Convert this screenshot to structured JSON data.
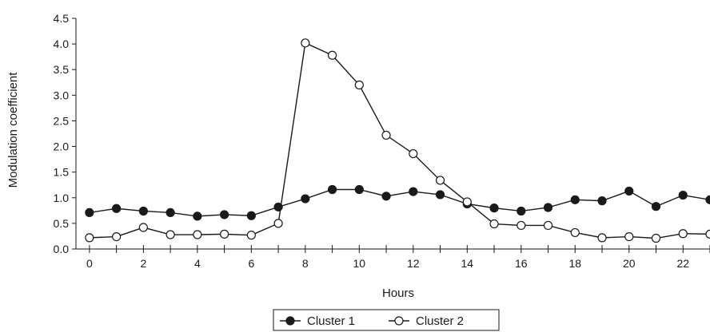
{
  "chart_data": {
    "type": "line",
    "title": "",
    "xlabel": "Hours",
    "ylabel": "Modulation coefficient",
    "xlim": [
      -0.5,
      23
    ],
    "ylim": [
      0,
      4.5
    ],
    "x_ticks": [
      0,
      2,
      4,
      6,
      8,
      10,
      12,
      14,
      16,
      18,
      20,
      22
    ],
    "x_tick_labels": [
      "0",
      "2",
      "4",
      "6",
      "8",
      "10",
      "12",
      "14",
      "16",
      "18",
      "20",
      "22"
    ],
    "y_ticks": [
      0,
      0.5,
      1,
      1.5,
      2,
      2.5,
      3,
      3.5,
      4,
      4.5
    ],
    "y_tick_labels": [
      "0.0",
      "0.5",
      "1.0",
      "1.5",
      "2.0",
      "2.5",
      "3.0",
      "3.5",
      "4.0",
      "4.5"
    ],
    "grid": false,
    "legend_position": "bottom-center",
    "x": [
      0,
      1,
      2,
      3,
      4,
      5,
      6,
      7,
      8,
      9,
      10,
      11,
      12,
      13,
      14,
      15,
      16,
      17,
      18,
      19,
      20,
      21,
      22,
      23
    ],
    "series": [
      {
        "name": "Cluster 1",
        "marker": "filled-circle",
        "color": "#1a1a1a",
        "values": [
          0.71,
          0.79,
          0.74,
          0.71,
          0.64,
          0.67,
          0.65,
          0.82,
          0.98,
          1.16,
          1.16,
          1.03,
          1.12,
          1.06,
          0.88,
          0.8,
          0.74,
          0.81,
          0.96,
          0.94,
          1.13,
          0.83,
          1.05,
          0.96
        ]
      },
      {
        "name": "Cluster 2",
        "marker": "open-circle",
        "color": "#1a1a1a",
        "values": [
          0.22,
          0.24,
          0.42,
          0.28,
          0.28,
          0.29,
          0.27,
          0.5,
          4.02,
          3.78,
          3.2,
          2.22,
          1.86,
          1.34,
          0.92,
          0.49,
          0.46,
          0.46,
          0.32,
          0.22,
          0.24,
          0.21,
          0.3,
          0.29
        ]
      }
    ]
  }
}
